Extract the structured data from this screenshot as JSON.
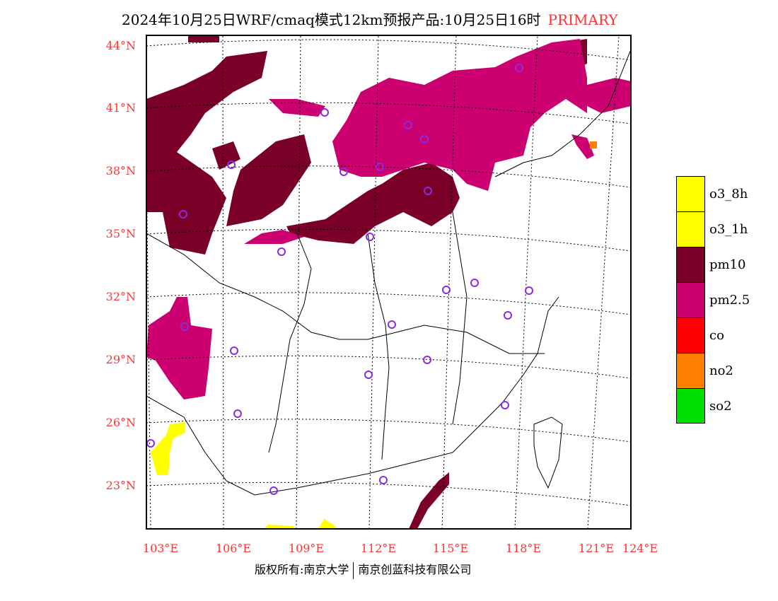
{
  "title": {
    "main": "2024年10月25日WRF/cmaq模式12km预报产品:10月25日16时",
    "tag": "PRIMARY"
  },
  "lat_labels": [
    "44°N",
    "41°N",
    "38°N",
    "35°N",
    "32°N",
    "29°N",
    "26°N",
    "23°N"
  ],
  "lon_labels": [
    "103°E",
    "106°E",
    "109°E",
    "112°E",
    "115°E",
    "118°E",
    "121°E",
    "124°E"
  ],
  "legend": [
    {
      "label": "o3_8h",
      "color": "#ffff00"
    },
    {
      "label": "o3_1h",
      "color": "#ffff00"
    },
    {
      "label": "pm10",
      "color": "#7a0028"
    },
    {
      "label": "pm2.5",
      "color": "#cc0070"
    },
    {
      "label": "co",
      "color": "#ff0000"
    },
    {
      "label": "no2",
      "color": "#ff8000"
    },
    {
      "label": "so2",
      "color": "#00e000"
    }
  ],
  "footer": {
    "left": "版权所有:南京大学",
    "right": "南京创蓝科技有限公司"
  }
}
